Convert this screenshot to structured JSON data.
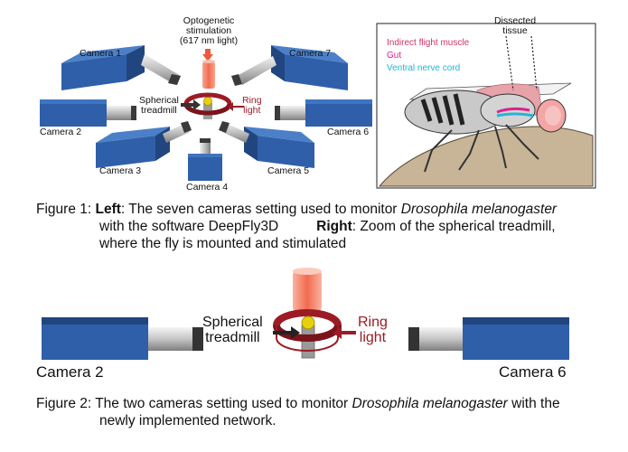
{
  "fig1": {
    "stimulation_label": "Optogenetic\nstimulation\n(617 nm light)",
    "ring_light_label": "Ring\nlight",
    "treadmill_label": "Spherical\ntreadmill",
    "cameras": [
      "Camera 1",
      "Camera 2",
      "Camera 3",
      "Camera 4",
      "Camera 5",
      "Camera 6",
      "Camera 7"
    ],
    "fly": {
      "dissected_label": "Dissected\ntissue",
      "legend": [
        "Indirect flight muscle",
        "Gut",
        "Ventral nerve cord"
      ]
    },
    "caption": {
      "prefix": "Figure 1: ",
      "left_bold": "Left",
      "left_text": ": The seven cameras setting used to monitor ",
      "species": "Drosophila melanogaster",
      "line2_text": "with the software DeepFly3D",
      "right_bold": "Right",
      "right_text": ": Zoom of the spherical treadmill,",
      "line3_text": "where the fly is mounted and stimulated"
    }
  },
  "fig2": {
    "treadmill_label": "Spherical\ntreadmill",
    "ring_light_label": "Ring\nlight",
    "camera_left": "Camera 2",
    "camera_right": "Camera 6",
    "caption": {
      "prefix": "Figure 2: ",
      "text1": "The two cameras setting used to monitor ",
      "species": "Drosophila melanogaster",
      "text2": " with the",
      "line2_text": "newly implemented network."
    }
  },
  "colors": {
    "camera_blue": "#2f5fa8",
    "camera_top": "#3f74c0",
    "camera_dark": "#21467f",
    "stim_red": "#f08a6e",
    "ring_red": "#9b1c24",
    "ball_yellow": "#e7d10c",
    "muscle": "#d0306a",
    "gut": "#e0208c",
    "vnc": "#22b6d8"
  }
}
